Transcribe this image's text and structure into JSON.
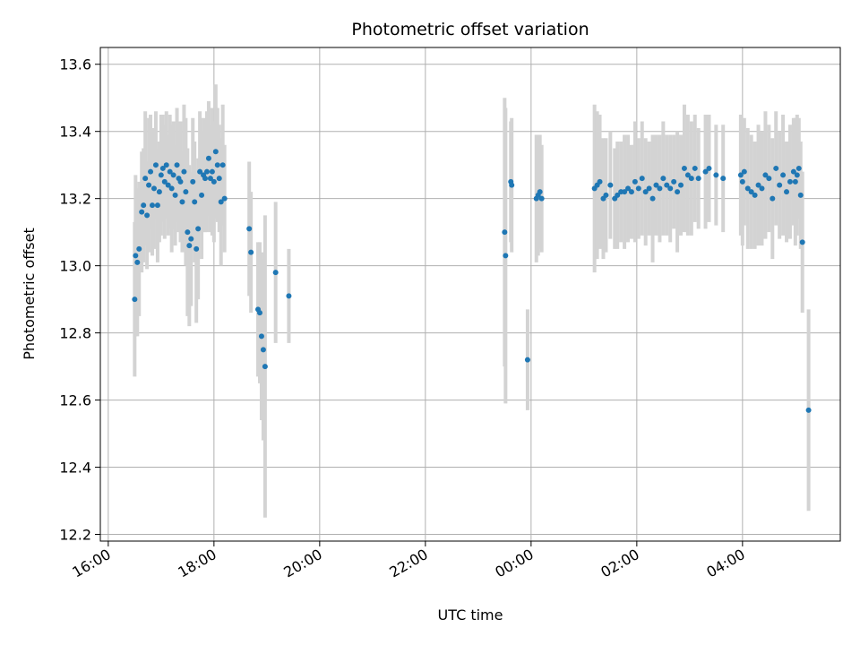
{
  "chart_data": {
    "type": "scatter",
    "title": "Photometric offset variation",
    "xlabel": "UTC time",
    "ylabel": "Photometric offset",
    "x_unit": "UTC time (hours; day 2 = next day)",
    "xlim": [
      "16:00",
      "05:50 (+1 day)"
    ],
    "ylim": [
      12.18,
      13.65
    ],
    "x_ticks": [
      "16:00",
      "18:00",
      "20:00",
      "22:00",
      "00:00",
      "02:00",
      "04:00"
    ],
    "y_ticks": [
      "12.2",
      "12.4",
      "12.6",
      "12.8",
      "13.0",
      "13.2",
      "13.4",
      "13.6"
    ],
    "grid": true,
    "colors": {
      "points": "#1f77b4",
      "errorbars": "#d3d3d3",
      "grid": "#b0b0b0"
    },
    "series": [
      {
        "points": [
          [
            "16:30",
            12.9,
            0.23
          ],
          [
            "16:31",
            13.03,
            0.24
          ],
          [
            "16:33",
            13.01,
            0.22
          ],
          [
            "16:35",
            13.05,
            0.2
          ],
          [
            "16:38",
            13.16,
            0.18
          ],
          [
            "16:40",
            13.18,
            0.17
          ],
          [
            "16:42",
            13.26,
            0.2
          ],
          [
            "16:44",
            13.15,
            0.16
          ],
          [
            "16:46",
            13.24,
            0.2
          ],
          [
            "16:48",
            13.28,
            0.17
          ],
          [
            "16:50",
            13.18,
            0.15
          ],
          [
            "16:52",
            13.23,
            0.18
          ],
          [
            "16:54",
            13.3,
            0.16
          ],
          [
            "16:56",
            13.18,
            0.17
          ],
          [
            "16:58",
            13.22,
            0.15
          ],
          [
            "17:00",
            13.27,
            0.18
          ],
          [
            "17:02",
            13.29,
            0.16
          ],
          [
            "17:04",
            13.25,
            0.17
          ],
          [
            "17:06",
            13.3,
            0.16
          ],
          [
            "17:08",
            13.24,
            0.15
          ],
          [
            "17:10",
            13.28,
            0.17
          ],
          [
            "17:12",
            13.23,
            0.19
          ],
          [
            "17:14",
            13.27,
            0.16
          ],
          [
            "17:16",
            13.21,
            0.15
          ],
          [
            "17:18",
            13.3,
            0.17
          ],
          [
            "17:20",
            13.26,
            0.16
          ],
          [
            "17:22",
            13.25,
            0.18
          ],
          [
            "17:24",
            13.19,
            0.15
          ],
          [
            "17:26",
            13.28,
            0.2
          ],
          [
            "17:28",
            13.22,
            0.22
          ],
          [
            "17:30",
            13.1,
            0.25
          ],
          [
            "17:32",
            13.06,
            0.24
          ],
          [
            "17:34",
            13.08,
            0.2
          ],
          [
            "17:36",
            13.25,
            0.19
          ],
          [
            "17:38",
            13.19,
            0.18
          ],
          [
            "17:40",
            13.05,
            0.22
          ],
          [
            "17:42",
            13.11,
            0.21
          ],
          [
            "17:44",
            13.28,
            0.18
          ],
          [
            "17:46",
            13.21,
            0.19
          ],
          [
            "17:48",
            13.27,
            0.17
          ],
          [
            "17:50",
            13.26,
            0.16
          ],
          [
            "17:52",
            13.28,
            0.18
          ],
          [
            "17:54",
            13.32,
            0.17
          ],
          [
            "17:56",
            13.26,
            0.16
          ],
          [
            "17:58",
            13.28,
            0.19
          ],
          [
            "18:00",
            13.25,
            0.18
          ],
          [
            "18:02",
            13.34,
            0.2
          ],
          [
            "18:04",
            13.3,
            0.17
          ],
          [
            "18:06",
            13.26,
            0.16
          ],
          [
            "18:08",
            13.19,
            0.19
          ],
          [
            "18:10",
            13.3,
            0.18
          ],
          [
            "18:12",
            13.2,
            0.16
          ],
          [
            "18:40",
            13.11,
            0.2
          ],
          [
            "18:42",
            13.04,
            0.18
          ],
          [
            "18:50",
            12.87,
            0.2
          ],
          [
            "18:52",
            12.86,
            0.21
          ],
          [
            "18:54",
            12.79,
            0.25
          ],
          [
            "18:56",
            12.75,
            0.27
          ],
          [
            "18:58",
            12.7,
            0.45
          ],
          [
            "19:10",
            12.98,
            0.21
          ],
          [
            "19:25",
            12.91,
            0.14
          ],
          [
            "23:30",
            13.1,
            0.4
          ],
          [
            "23:31",
            13.03,
            0.44
          ],
          [
            "23:37",
            13.25,
            0.18
          ],
          [
            "23:38",
            13.24,
            0.2
          ],
          [
            "23:56",
            12.72,
            0.15
          ],
          [
            "24:06",
            13.2,
            0.19
          ],
          [
            "24:08",
            13.21,
            0.18
          ],
          [
            "24:10",
            13.22,
            0.17
          ],
          [
            "24:12",
            13.2,
            0.16
          ],
          [
            "25:12",
            13.23,
            0.25
          ],
          [
            "25:15",
            13.24,
            0.22
          ],
          [
            "25:18",
            13.25,
            0.2
          ],
          [
            "25:22",
            13.2,
            0.18
          ],
          [
            "25:25",
            13.21,
            0.17
          ],
          [
            "25:30",
            13.24,
            0.16
          ],
          [
            "25:35",
            13.2,
            0.15
          ],
          [
            "25:38",
            13.21,
            0.16
          ],
          [
            "25:42",
            13.22,
            0.15
          ],
          [
            "25:46",
            13.22,
            0.17
          ],
          [
            "25:50",
            13.23,
            0.16
          ],
          [
            "25:54",
            13.22,
            0.14
          ],
          [
            "25:58",
            13.25,
            0.18
          ],
          [
            "26:02",
            13.23,
            0.15
          ],
          [
            "26:06",
            13.26,
            0.17
          ],
          [
            "26:10",
            13.22,
            0.16
          ],
          [
            "26:14",
            13.23,
            0.14
          ],
          [
            "26:18",
            13.2,
            0.19
          ],
          [
            "26:22",
            13.24,
            0.15
          ],
          [
            "26:26",
            13.23,
            0.16
          ],
          [
            "26:30",
            13.26,
            0.17
          ],
          [
            "26:34",
            13.24,
            0.15
          ],
          [
            "26:38",
            13.23,
            0.16
          ],
          [
            "26:42",
            13.25,
            0.14
          ],
          [
            "26:46",
            13.22,
            0.18
          ],
          [
            "26:50",
            13.24,
            0.15
          ],
          [
            "26:54",
            13.29,
            0.19
          ],
          [
            "26:58",
            13.27,
            0.18
          ],
          [
            "27:02",
            13.26,
            0.17
          ],
          [
            "27:06",
            13.29,
            0.16
          ],
          [
            "27:10",
            13.26,
            0.15
          ],
          [
            "27:18",
            13.28,
            0.17
          ],
          [
            "27:22",
            13.29,
            0.16
          ],
          [
            "27:30",
            13.27,
            0.15
          ],
          [
            "27:38",
            13.26,
            0.16
          ],
          [
            "27:58",
            13.27,
            0.18
          ],
          [
            "28:00",
            13.25,
            0.19
          ],
          [
            "28:02",
            13.28,
            0.16
          ],
          [
            "28:06",
            13.23,
            0.18
          ],
          [
            "28:10",
            13.22,
            0.17
          ],
          [
            "28:14",
            13.21,
            0.16
          ],
          [
            "28:18",
            13.24,
            0.18
          ],
          [
            "28:22",
            13.23,
            0.17
          ],
          [
            "28:26",
            13.27,
            0.19
          ],
          [
            "28:30",
            13.26,
            0.16
          ],
          [
            "28:34",
            13.2,
            0.18
          ],
          [
            "28:38",
            13.29,
            0.17
          ],
          [
            "28:42",
            13.24,
            0.16
          ],
          [
            "28:46",
            13.27,
            0.18
          ],
          [
            "28:50",
            13.22,
            0.15
          ],
          [
            "28:54",
            13.25,
            0.17
          ],
          [
            "28:58",
            13.28,
            0.16
          ],
          [
            "29:00",
            13.25,
            0.19
          ],
          [
            "29:02",
            13.27,
            0.18
          ],
          [
            "29:04",
            13.29,
            0.15
          ],
          [
            "29:06",
            13.21,
            0.16
          ],
          [
            "29:08",
            13.07,
            0.21
          ],
          [
            "29:15",
            12.57,
            0.3
          ]
        ]
      }
    ]
  }
}
